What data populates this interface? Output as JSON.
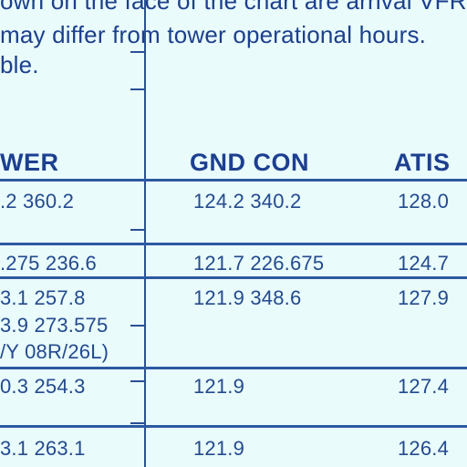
{
  "intro": {
    "line1": "own on the face of the chart are arrival VFR",
    "line2": "may differ from tower operational hours.",
    "line3": "ble."
  },
  "headers": {
    "tower": "WER",
    "gnd_con": "GND  CON",
    "atis": "ATIS"
  },
  "rows": [
    {
      "tower": ".2  360.2",
      "gnd_con": "124.2  340.2",
      "atis": "128.0"
    },
    {
      "tower": ".275  236.6",
      "gnd_con": "121.7  226.675",
      "atis": "124.7"
    },
    {
      "tower_lines": [
        "3.1  257.8",
        "3.9  273.575",
        "/Y  08R/26L)"
      ],
      "gnd_con": "121.9  348.6",
      "atis": "127.9"
    },
    {
      "tower": "0.3  254.3",
      "gnd_con": "121.9",
      "atis": "127.4"
    },
    {
      "tower": "3.1  263.1",
      "gnd_con": "121.9",
      "atis": "126.4"
    }
  ],
  "colors": {
    "background": "#e9fbfb",
    "ink": "#1f3f86",
    "rule": "#2c5aa0"
  }
}
